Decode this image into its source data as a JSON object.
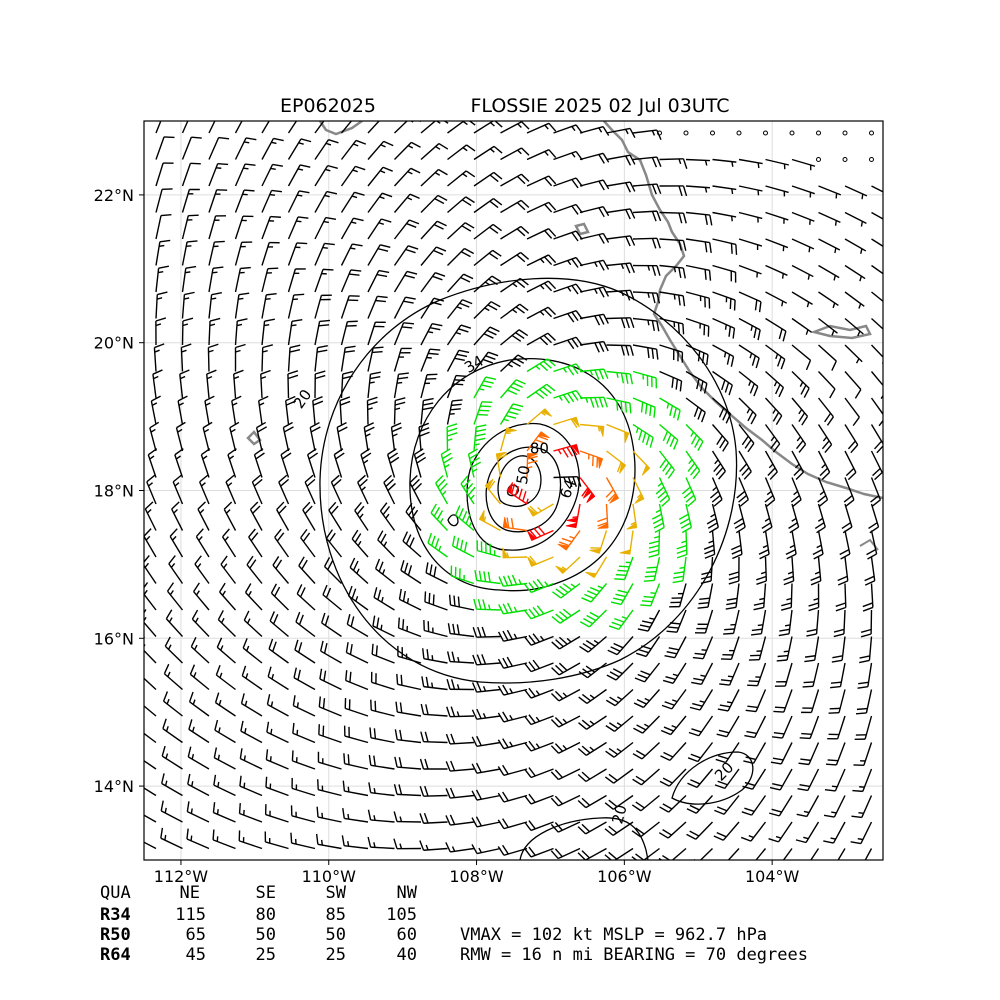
{
  "chart_data": {
    "type": "wind-barb-map",
    "title_left": "EP062025",
    "title_right": "FLOSSIE 2025 02 Jul 03UTC",
    "lon_range": [
      -112.5,
      -102.5
    ],
    "lat_range": [
      13,
      23
    ],
    "x_ticks": [
      {
        "value": -112,
        "label": "112°W"
      },
      {
        "value": -110,
        "label": "110°W"
      },
      {
        "value": -108,
        "label": "108°W"
      },
      {
        "value": -106,
        "label": "106°W"
      },
      {
        "value": -104,
        "label": "104°W"
      }
    ],
    "y_ticks": [
      {
        "value": 14,
        "label": "14°N"
      },
      {
        "value": 16,
        "label": "16°N"
      },
      {
        "value": 18,
        "label": "18°N"
      },
      {
        "value": 20,
        "label": "20°N"
      },
      {
        "value": 22,
        "label": "22°N"
      }
    ],
    "grid": true,
    "center": {
      "lon": -107.0,
      "lat": 18.05
    },
    "wind_colors": {
      "calm": "#000000",
      "light": "#000000",
      "ts": "#00e000",
      "strong": "#e8b000",
      "hurricane": "#ff6a00",
      "major": "#ff0000"
    },
    "wind_thresholds_kt": [
      34,
      50,
      64,
      80
    ],
    "contour_labels": [
      {
        "text": "20",
        "lon": -110.3,
        "lat": 19.2,
        "rot": -55
      },
      {
        "text": "34",
        "lon": -108.0,
        "lat": 19.65,
        "rot": -30
      },
      {
        "text": "50",
        "lon": -107.3,
        "lat": 18.2,
        "rot": -80
      },
      {
        "text": "64",
        "lon": -106.7,
        "lat": 18.0,
        "rot": -70
      },
      {
        "text": "80",
        "lon": -107.15,
        "lat": 18.5,
        "rot": 0
      },
      {
        "text": "20",
        "lon": -106.0,
        "lat": 13.6,
        "rot": -75
      },
      {
        "text": "20",
        "lon": -104.6,
        "lat": 14.15,
        "rot": -45
      }
    ],
    "radii_table": {
      "headers": [
        "QUA",
        "NE",
        "SE",
        "SW",
        "NW"
      ],
      "rows": [
        {
          "label": "R34",
          "values": [
            "115",
            "80",
            "85",
            "105"
          ]
        },
        {
          "label": "R50",
          "values": [
            "65",
            "50",
            "50",
            "60"
          ]
        },
        {
          "label": "R64",
          "values": [
            "45",
            "25",
            "25",
            "40"
          ]
        }
      ]
    },
    "stats_line1": "VMAX = 102 kt MSLP = 962.7 hPa",
    "stats_line2": "RMW =  16 n mi BEARING =  70 degrees",
    "vmax_kt": 102,
    "rmw_nmi": 16
  }
}
